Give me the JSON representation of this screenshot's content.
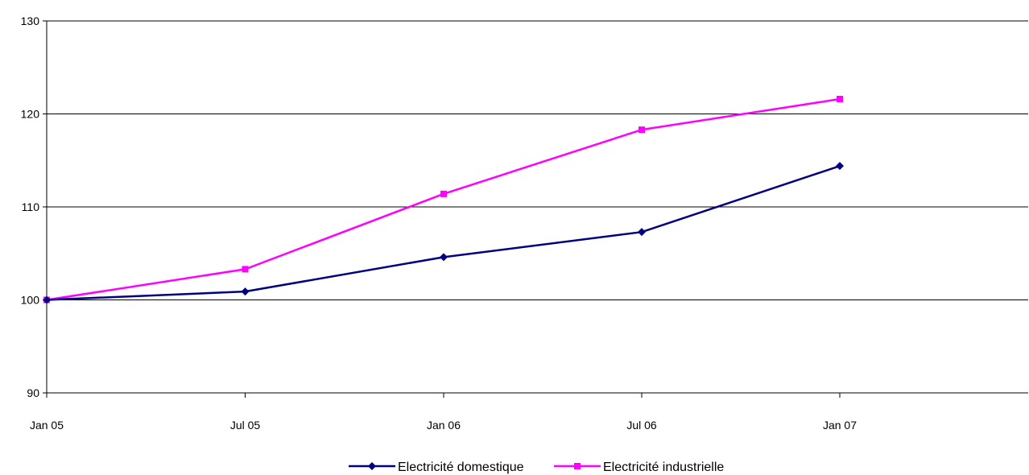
{
  "chart_data": {
    "type": "line",
    "categories": [
      "Jan 05",
      "Jul 05",
      "Jan 06",
      "Jul 06",
      "Jan 07"
    ],
    "series": [
      {
        "name": "Electricité domestique",
        "values": [
          100,
          100.9,
          104.6,
          107.3,
          114.4
        ],
        "color": "#000080",
        "marker": "diamond"
      },
      {
        "name": "Electricité industrielle",
        "values": [
          100,
          103.3,
          111.4,
          118.3,
          121.6
        ],
        "color": "#ff00ff",
        "marker": "square"
      }
    ],
    "yticks": [
      "90",
      "100",
      "110",
      "120",
      "130"
    ],
    "ylim": [
      90,
      130
    ],
    "grid": true,
    "legend": "bottom"
  }
}
